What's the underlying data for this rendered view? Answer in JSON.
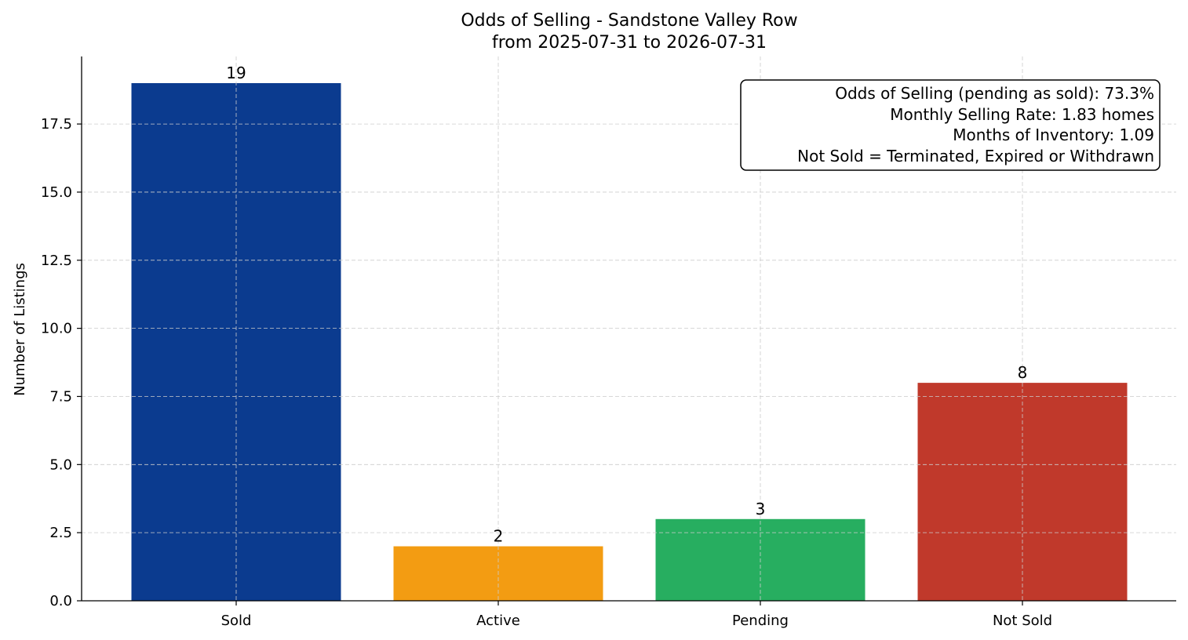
{
  "chart_data": {
    "type": "bar",
    "title": "Odds of Selling - Sandstone Valley Row",
    "subtitle": "from 2025-07-31 to 2026-07-31",
    "xlabel": "",
    "ylabel": "Number of Listings",
    "categories": [
      "Sold",
      "Active",
      "Pending",
      "Not Sold"
    ],
    "values": [
      19,
      2,
      3,
      8
    ],
    "colors": [
      "#0b3b8f",
      "#f39c12",
      "#27ae60",
      "#c0392b"
    ],
    "ylim": [
      0,
      20
    ],
    "yticks": [
      0,
      2.5,
      5,
      7.5,
      10,
      12.5,
      15,
      17.5
    ],
    "ytick_labels": [
      "0.0",
      "2.5",
      "5.0",
      "7.5",
      "10.0",
      "12.5",
      "15.0",
      "17.5"
    ],
    "grid": true,
    "info_box": {
      "placement": "top-right",
      "lines": [
        "Odds of Selling (pending as sold): 73.3%",
        "Monthly Selling Rate: 1.83 homes",
        "Months of Inventory: 1.09",
        "Not Sold = Terminated, Expired or Withdrawn"
      ]
    }
  }
}
